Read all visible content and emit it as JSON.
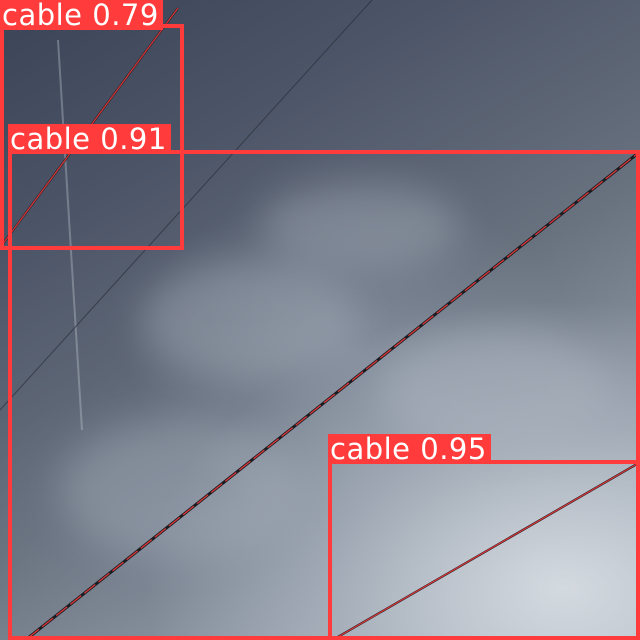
{
  "image": {
    "subject": "overhead power cables against a cloudy sky",
    "box_color": "#ff3b3b",
    "label_text_color": "#ffffff",
    "cable_color": "#1a1c22"
  },
  "detections": [
    {
      "class": "cable",
      "score": "0.79",
      "label": "cable 0.79"
    },
    {
      "class": "cable",
      "score": "0.91",
      "label": "cable 0.91"
    },
    {
      "class": "cable",
      "score": "0.95",
      "label": "cable 0.95"
    }
  ]
}
